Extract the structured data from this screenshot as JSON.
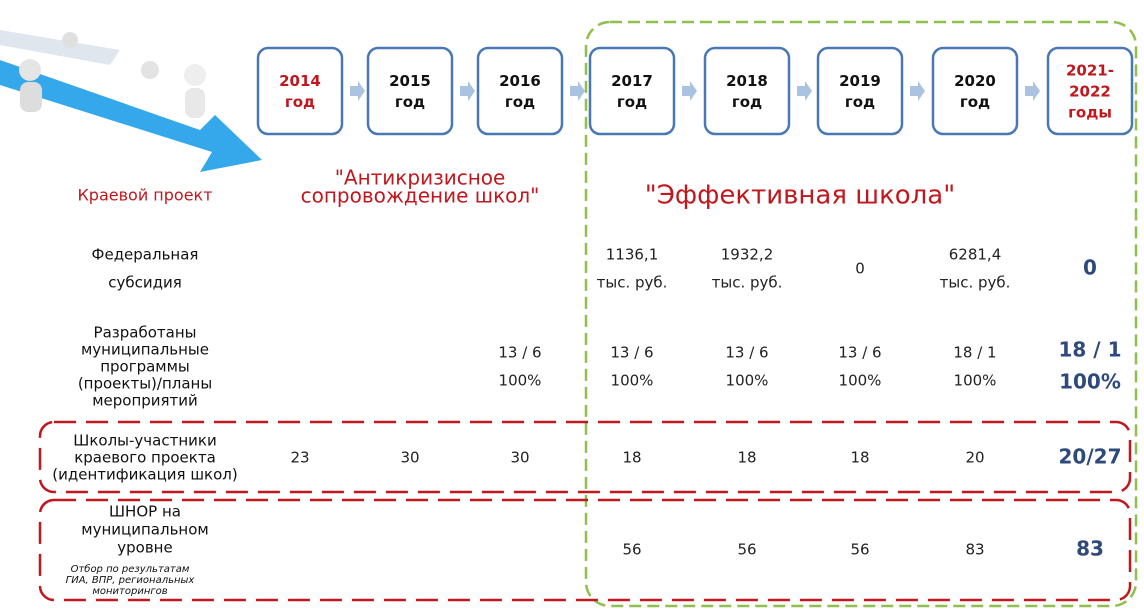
{
  "timeline": {
    "years": [
      {
        "lines": [
          "2014",
          "год"
        ]
      },
      {
        "lines": [
          "2015",
          "год"
        ]
      },
      {
        "lines": [
          "2016",
          "год"
        ]
      },
      {
        "lines": [
          "2017",
          "год"
        ]
      },
      {
        "lines": [
          "2018",
          "год"
        ]
      },
      {
        "lines": [
          "2019",
          "год"
        ]
      },
      {
        "lines": [
          "2020",
          "год"
        ]
      },
      {
        "lines": [
          "2021-",
          "2022",
          "годы"
        ]
      }
    ]
  },
  "projects": {
    "label": "Краевой проект",
    "anti_crisis": [
      "\"Антикризисное",
      "сопровождение школ\""
    ],
    "effective": "\"Эффективная школа\""
  },
  "rows": [
    {
      "label": [
        "Федеральная",
        "субсидия"
      ],
      "cells": [
        null,
        null,
        null,
        [
          "1136,1",
          "тыс. руб."
        ],
        [
          "1932,2",
          "тыс. руб."
        ],
        [
          "0"
        ],
        [
          "6281,4",
          "тыс. руб."
        ],
        [
          "0"
        ]
      ]
    },
    {
      "label": [
        "Разработаны",
        "муниципальные",
        "программы",
        "(проекты)/планы",
        "мероприятий"
      ],
      "cells": [
        null,
        null,
        [
          "13 / 6",
          "100%"
        ],
        [
          "13 / 6",
          "100%"
        ],
        [
          "13 / 6",
          "100%"
        ],
        [
          "13 / 6",
          "100%"
        ],
        [
          "18 / 1",
          "100%"
        ],
        [
          "18 / 1",
          "100%"
        ]
      ]
    },
    {
      "label": [
        "Школы-участники",
        "краевого проекта",
        "(идентификация школ)"
      ],
      "cells": [
        [
          "23"
        ],
        [
          "30"
        ],
        [
          "30"
        ],
        [
          "18"
        ],
        [
          "18"
        ],
        [
          "18"
        ],
        [
          "20"
        ],
        [
          "20/27"
        ]
      ]
    },
    {
      "label": [
        "ШНОР на",
        "муниципальном",
        "уровне"
      ],
      "note": [
        "Отбор по результатам",
        "ГИА, ВПР, региональных",
        "мониторингов"
      ],
      "cells": [
        null,
        null,
        null,
        [
          "56"
        ],
        [
          "56"
        ],
        [
          "56"
        ],
        [
          "83"
        ],
        [
          "83"
        ]
      ]
    }
  ]
}
